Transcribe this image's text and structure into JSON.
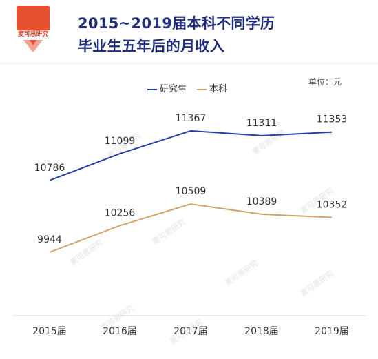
{
  "logo": {
    "text": "麦可思研究"
  },
  "title_lines": [
    "2015~2019届本科不同学历",
    "毕业生五年后的月收入"
  ],
  "unit_label": "单位：元",
  "watermark": "麦可思研究",
  "colors": {
    "title": "#1f2d7a",
    "series_1": "#2440a8",
    "series_2": "#d1a46e",
    "logo": "#e8512f"
  },
  "chart_data": {
    "type": "line",
    "categories": [
      "2015届",
      "2016届",
      "2017届",
      "2018届",
      "2019届"
    ],
    "series": [
      {
        "name": "研究生",
        "values": [
          10786,
          11099,
          11367,
          11311,
          11353
        ]
      },
      {
        "name": "本科",
        "values": [
          9944,
          10256,
          10509,
          10389,
          10352
        ]
      }
    ],
    "title": "2015~2019届本科不同学历毕业生五年后的月收入",
    "xlabel": "",
    "ylabel": "",
    "ylim": [
      9200,
      11900
    ],
    "grid": false,
    "legend_position": "top-center",
    "data_labels": true
  }
}
